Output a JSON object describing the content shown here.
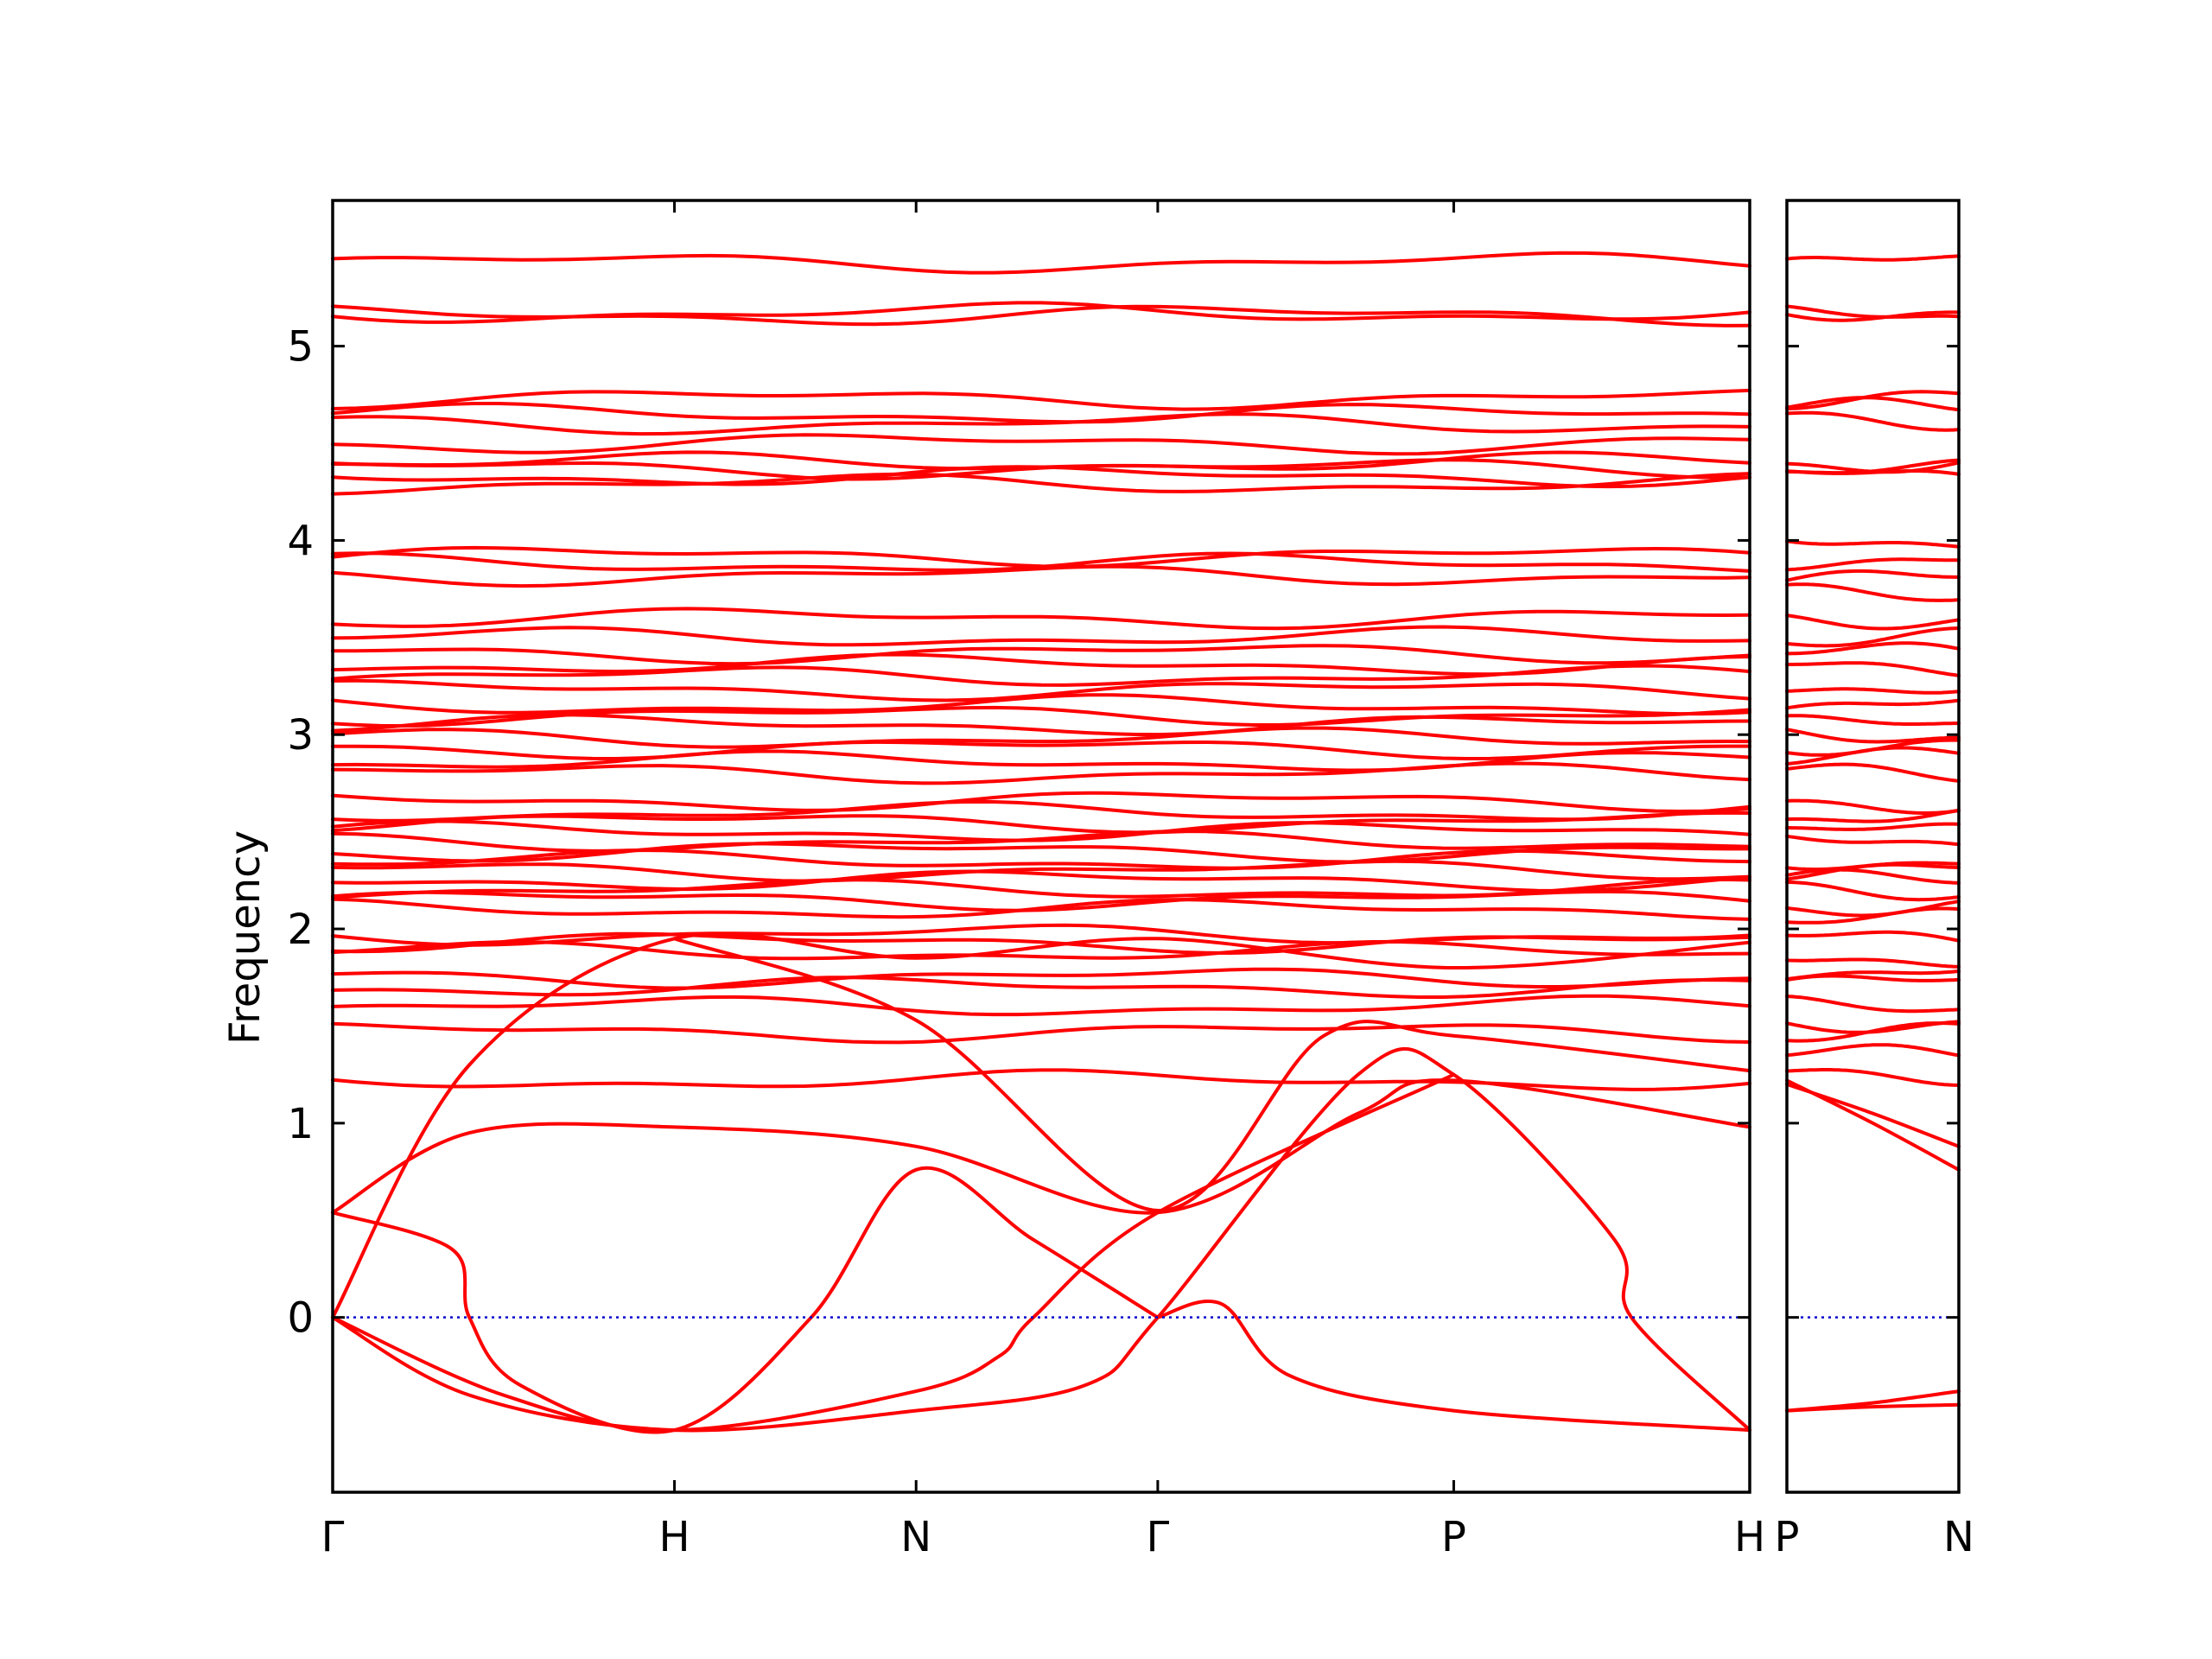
{
  "chart_data": {
    "type": "line",
    "title": "",
    "xlabel": "",
    "ylabel": "Frequency",
    "ylim": [
      -0.9,
      5.75
    ],
    "grid": false,
    "legend": "none",
    "colors": {
      "bands": "#ff0000",
      "zero_line": "#0000cc",
      "axes": "#000000"
    },
    "yticks": [
      {
        "value": 0,
        "label": "0"
      },
      {
        "value": 1,
        "label": "1"
      },
      {
        "value": 2,
        "label": "2"
      },
      {
        "value": 3,
        "label": "3"
      },
      {
        "value": 4,
        "label": "4"
      },
      {
        "value": 5,
        "label": "5"
      }
    ],
    "panels": [
      {
        "segments": [
          "Γ-H",
          "H-N",
          "N-Γ",
          "Γ-P",
          "P-H"
        ],
        "xticks": [
          {
            "pos": 0,
            "label": "Γ"
          },
          {
            "pos": 1,
            "label": "H"
          },
          {
            "pos": 1.707,
            "label": "N"
          },
          {
            "pos": 2.414,
            "label": "Γ"
          },
          {
            "pos": 3.28,
            "label": "P"
          },
          {
            "pos": 4.146,
            "label": "H"
          }
        ],
        "xlim": [
          0,
          4.146
        ],
        "flat_bands": [
          5.43,
          5.16,
          5.17,
          4.73,
          4.65,
          4.6,
          4.5,
          4.4,
          4.37,
          4.33,
          4.29,
          3.92,
          3.88,
          3.82,
          3.6,
          3.5,
          3.42,
          3.36,
          3.3,
          3.23,
          3.15,
          3.1,
          3.05,
          2.98,
          2.93,
          2.86,
          2.8,
          2.66,
          2.6,
          2.55,
          2.5,
          2.45,
          2.4,
          2.35,
          2.3,
          2.25,
          2.2,
          2.15,
          2.1,
          1.97,
          1.93,
          1.88,
          1.75,
          1.7,
          1.6,
          1.47,
          1.22
        ],
        "acoustic_branches": [
          {
            "name": "",
            "points": [
              [
                0,
                0
              ],
              [
                0.4,
                1.3
              ],
              [
                1.0,
                1.95
              ],
              [
                1.707,
                1.85
              ],
              [
                2.414,
                1.95
              ],
              [
                3.28,
                1.8
              ],
              [
                4.146,
                1.93
              ]
            ]
          },
          {
            "name": "",
            "points": [
              [
                0,
                0.54
              ],
              [
                0.4,
                0.95
              ],
              [
                1.0,
                0.98
              ],
              [
                1.707,
                0.88
              ],
              [
                2.414,
                0.54
              ],
              [
                3.0,
                1.05
              ],
              [
                3.28,
                1.22
              ],
              [
                4.146,
                0.98
              ]
            ]
          },
          {
            "name": "",
            "points": [
              [
                0,
                0.54
              ],
              [
                0.35,
                0.35
              ],
              [
                0.4,
                0.0
              ],
              [
                0.55,
                -0.35
              ],
              [
                1.0,
                -0.58
              ],
              [
                1.4,
                0.0
              ],
              [
                1.707,
                0.76
              ],
              [
                2.05,
                0.4
              ],
              [
                2.414,
                0.0
              ]
            ]
          },
          {
            "name": "",
            "points": [
              [
                0,
                0
              ],
              [
                0.4,
                -0.4
              ],
              [
                1.0,
                -0.58
              ],
              [
                1.707,
                -0.48
              ],
              [
                2.2,
                -0.35
              ],
              [
                2.414,
                0.0
              ],
              [
                3.0,
                1.25
              ],
              [
                3.28,
                1.25
              ],
              [
                3.75,
                0.4
              ],
              [
                3.8,
                0.0
              ],
              [
                4.146,
                -0.58
              ]
            ]
          },
          {
            "name": "",
            "points": [
              [
                2.414,
                0.0
              ],
              [
                2.6,
                0.07
              ],
              [
                2.8,
                -0.3
              ],
              [
                3.28,
                -0.48
              ],
              [
                4.146,
                -0.58
              ]
            ]
          },
          {
            "name": "",
            "points": [
              [
                0,
                0.0
              ],
              [
                0.5,
                -0.4
              ],
              [
                1.0,
                -0.58
              ],
              [
                1.707,
                -0.38
              ],
              [
                1.95,
                -0.2
              ],
              [
                2.05,
                0.0
              ],
              [
                2.414,
                0.54
              ],
              [
                3.28,
                1.25
              ]
            ]
          },
          {
            "name": "",
            "points": [
              [
                1.0,
                1.95
              ],
              [
                1.707,
                1.53
              ],
              [
                2.414,
                0.55
              ],
              [
                2.9,
                1.45
              ],
              [
                3.28,
                1.45
              ],
              [
                4.146,
                1.27
              ]
            ]
          }
        ]
      },
      {
        "segments": [
          "P-N"
        ],
        "xticks": [
          {
            "pos": 0,
            "label": "P"
          },
          {
            "pos": 1,
            "label": "N"
          }
        ],
        "xlim": [
          0,
          1
        ],
        "flat_bands": [
          5.43,
          5.16,
          5.18,
          4.73,
          4.68,
          4.62,
          4.4,
          4.36,
          4.33,
          4.0,
          3.9,
          3.8,
          3.72,
          3.6,
          3.5,
          3.42,
          3.35,
          3.25,
          3.15,
          3.05,
          3.0,
          2.95,
          2.88,
          2.8,
          2.65,
          2.58,
          2.5,
          2.45,
          2.35,
          2.3,
          2.25,
          2.2,
          2.12,
          2.05,
          1.95,
          1.85,
          1.78,
          1.72,
          1.6,
          1.52,
          1.47,
          1.35,
          1.25
        ],
        "acoustic_branches": [
          {
            "name": "",
            "points": [
              [
                0,
                1.22
              ],
              [
                0.5,
                1.0
              ],
              [
                1.0,
                0.76
              ]
            ]
          },
          {
            "name": "",
            "points": [
              [
                0,
                1.2
              ],
              [
                0.5,
                1.05
              ],
              [
                1.0,
                0.88
              ]
            ]
          },
          {
            "name": "",
            "points": [
              [
                0,
                -0.48
              ],
              [
                0.5,
                -0.44
              ],
              [
                1.0,
                -0.38
              ]
            ]
          },
          {
            "name": "",
            "points": [
              [
                0,
                -0.48
              ],
              [
                0.5,
                -0.46
              ],
              [
                1.0,
                -0.45
              ]
            ]
          }
        ]
      }
    ]
  }
}
